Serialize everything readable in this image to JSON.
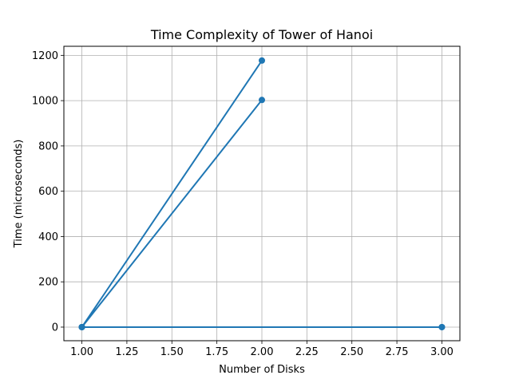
{
  "chart_data": {
    "type": "line",
    "title": "Time Complexity of Tower of Hanoi",
    "xlabel": "Number of Disks",
    "ylabel": "Time (microseconds)",
    "xlim": [
      0.9,
      3.1
    ],
    "ylim": [
      -60,
      1240
    ],
    "xticks": [
      1.0,
      1.25,
      1.5,
      1.75,
      2.0,
      2.25,
      2.5,
      2.75,
      3.0
    ],
    "xtick_labels": [
      "1.00",
      "1.25",
      "1.50",
      "1.75",
      "2.00",
      "2.25",
      "2.50",
      "2.75",
      "3.00"
    ],
    "yticks": [
      0,
      200,
      400,
      600,
      800,
      1000,
      1200
    ],
    "ytick_labels": [
      "0",
      "200",
      "400",
      "600",
      "800",
      "1000",
      "1200"
    ],
    "grid": true,
    "color": "#1f77b4",
    "series": [
      {
        "x": [
          1,
          2,
          1,
          2,
          1,
          3,
          1,
          3
        ],
        "y": [
          0,
          1177,
          0,
          1003,
          0,
          0,
          0,
          0
        ]
      }
    ]
  }
}
